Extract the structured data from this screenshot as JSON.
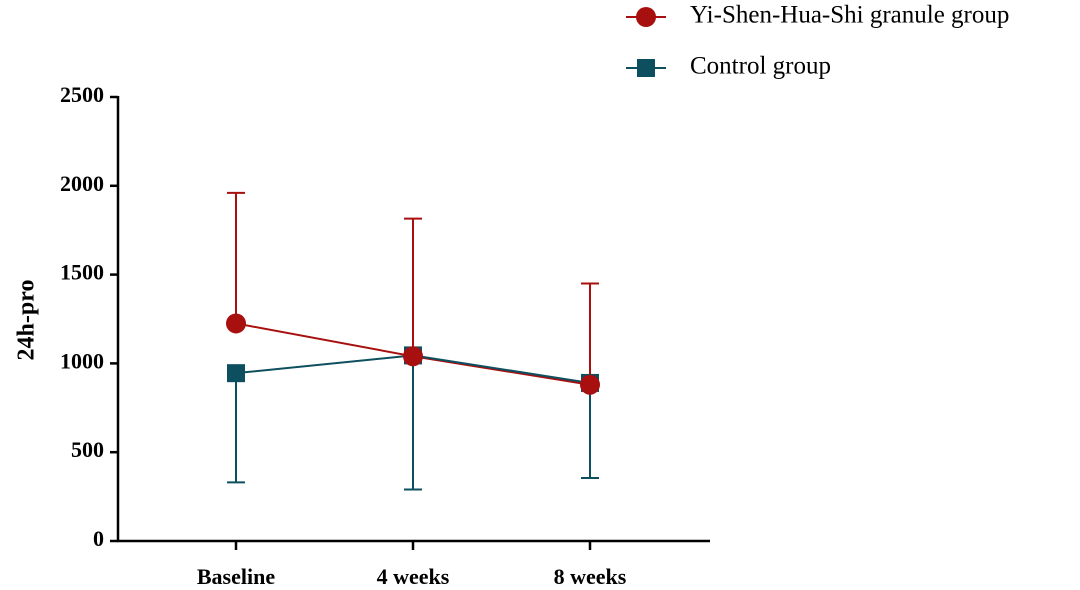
{
  "chart_data": {
    "type": "line",
    "y_label": "24h-pro",
    "categories": [
      "Baseline",
      "4 weeks",
      "8 weeks"
    ],
    "series": [
      {
        "name": "Yi-Shen-Hua-Shi granule group",
        "color": "#a80f0f",
        "marker": "circle",
        "values": [
          1225,
          1040,
          880
        ],
        "errors": [
          735,
          775,
          570
        ],
        "error_direction": "up"
      },
      {
        "name": "Control group",
        "color": "#0d4f5e",
        "marker": "square",
        "values": [
          945,
          1045,
          890
        ],
        "errors": [
          615,
          755,
          535
        ],
        "error_direction": "down"
      }
    ],
    "ylim": [
      0,
      2500
    ],
    "yticks": [
      0,
      500,
      1000,
      1500,
      2000,
      2500
    ]
  }
}
